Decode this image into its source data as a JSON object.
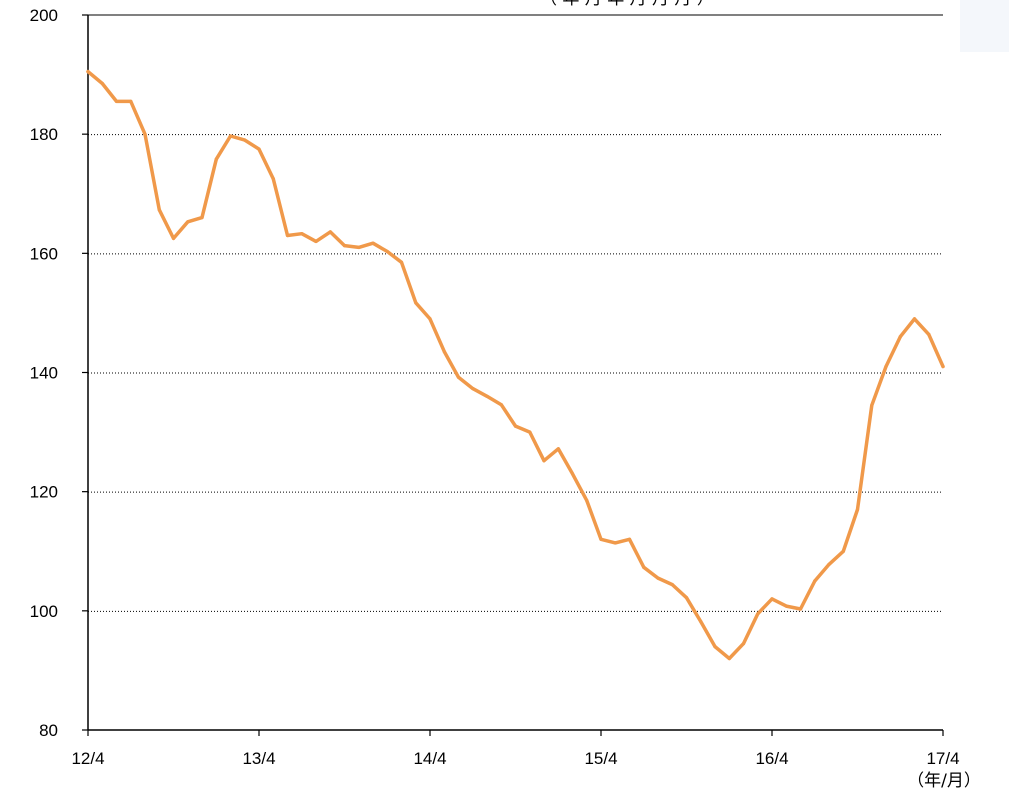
{
  "header_note": "（ 年 月 年 月 月 月 ）",
  "x_unit_label": "（年/月）",
  "colors": {
    "line": "#F0994A",
    "axis": "#000000",
    "grid": "#000000",
    "background": "#FFFFFF",
    "top_right_panel": "#F4F7FB"
  },
  "chart_data": {
    "type": "line",
    "title": "",
    "xlabel": "（年/月）",
    "ylabel": "",
    "ylim": [
      80,
      200
    ],
    "y_ticks": [
      80,
      100,
      120,
      140,
      160,
      180,
      200
    ],
    "y_tick_labels": [
      "80",
      "100",
      "120",
      "140",
      "160",
      "180",
      "200"
    ],
    "x_tick_labels": [
      "12/4",
      "13/4",
      "14/4",
      "15/4",
      "16/4",
      "17/4"
    ],
    "x_tick_months": [
      "2012-04",
      "2013-04",
      "2014-04",
      "2015-04",
      "2016-04",
      "2017-04"
    ],
    "grid": "horizontal dotted",
    "series": [
      {
        "x": [
          "2012-04",
          "2012-05",
          "2012-06",
          "2012-07",
          "2012-08",
          "2012-09",
          "2012-10",
          "2012-11",
          "2012-12",
          "2013-01",
          "2013-02",
          "2013-03",
          "2013-04",
          "2013-05",
          "2013-06",
          "2013-07",
          "2013-08",
          "2013-09",
          "2013-10",
          "2013-11",
          "2013-12",
          "2014-01",
          "2014-02",
          "2014-03",
          "2014-04",
          "2014-05",
          "2014-06",
          "2014-07",
          "2014-08",
          "2014-09",
          "2014-10",
          "2014-11",
          "2014-12",
          "2015-01",
          "2015-02",
          "2015-03",
          "2015-04",
          "2015-05",
          "2015-06",
          "2015-07",
          "2015-08",
          "2015-09",
          "2015-10",
          "2015-11",
          "2015-12",
          "2016-01",
          "2016-02",
          "2016-03",
          "2016-04",
          "2016-05",
          "2016-06",
          "2016-07",
          "2016-08",
          "2016-09",
          "2016-10",
          "2016-11",
          "2016-12",
          "2017-01",
          "2017-02",
          "2017-03",
          "2017-04"
        ],
        "values": [
          190.5,
          188.5,
          185.5,
          185.5,
          180,
          167.3,
          162.5,
          165.3,
          166,
          175.8,
          179.7,
          179,
          177.5,
          172.5,
          163,
          163.3,
          162,
          163.6,
          161.3,
          161,
          161.7,
          160.3,
          158.5,
          151.7,
          149,
          143.5,
          139.2,
          137.3,
          136,
          134.6,
          131,
          130,
          125.2,
          127.2,
          123,
          118.5,
          112,
          111.4,
          112,
          107.3,
          105.5,
          104.4,
          102.2,
          98.2,
          94,
          92,
          94.5,
          99.5,
          102,
          100.8,
          100.3,
          105,
          107.8,
          110,
          117,
          134.5,
          141,
          146,
          149,
          146.4,
          141
        ]
      }
    ]
  }
}
